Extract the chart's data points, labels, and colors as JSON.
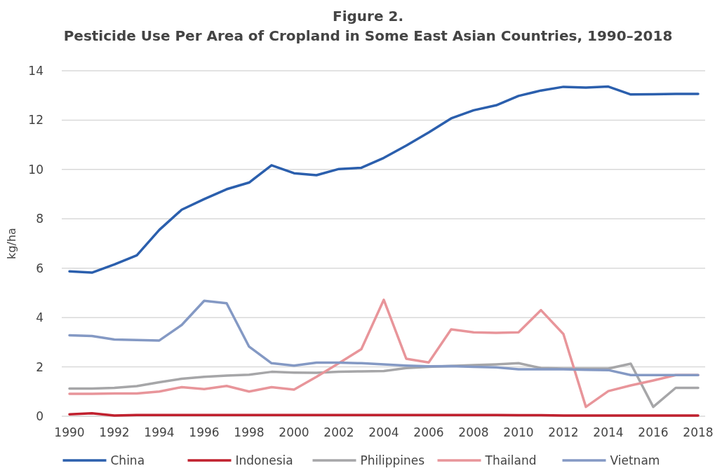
{
  "chart_data": {
    "type": "line",
    "title": "Figure 2.",
    "subtitle": "Pesticide Use Per Area of Cropland in Some East Asian Countries, 1990–2018",
    "ylabel": "kg/ha",
    "x": [
      1990,
      1991,
      1992,
      1993,
      1994,
      1995,
      1996,
      1997,
      1998,
      1999,
      2000,
      2001,
      2002,
      2003,
      2004,
      2005,
      2006,
      2007,
      2008,
      2009,
      2010,
      2011,
      2012,
      2013,
      2014,
      2015,
      2016,
      2017,
      2018
    ],
    "xlim": [
      1990,
      2018
    ],
    "xticks": [
      1990,
      1992,
      1994,
      1996,
      1998,
      2000,
      2002,
      2004,
      2006,
      2008,
      2010,
      2012,
      2014,
      2016,
      2018
    ],
    "ylim": [
      0,
      14
    ],
    "yticks": [
      0,
      2,
      4,
      6,
      8,
      10,
      12,
      14
    ],
    "grid": "y",
    "legend": "bottom",
    "marker": "none",
    "line_style": "solid",
    "series": [
      {
        "name": "China",
        "color": "#2b5fad",
        "values": [
          5.87,
          5.82,
          6.15,
          6.52,
          7.55,
          8.37,
          8.8,
          9.2,
          9.47,
          10.17,
          9.85,
          9.77,
          10.02,
          10.07,
          10.47,
          10.97,
          11.5,
          12.07,
          12.4,
          12.6,
          12.98,
          13.2,
          13.35,
          13.32,
          13.36,
          13.04,
          13.05,
          13.06,
          13.06
        ]
      },
      {
        "name": "Indonesia",
        "color": "#c0202e",
        "values": [
          0.08,
          0.12,
          0.03,
          0.05,
          0.05,
          0.05,
          0.05,
          0.05,
          0.05,
          0.05,
          0.05,
          0.05,
          0.05,
          0.05,
          0.05,
          0.05,
          0.05,
          0.05,
          0.05,
          0.05,
          0.04,
          0.04,
          0.03,
          0.03,
          0.03,
          0.03,
          0.03,
          0.03,
          0.03
        ]
      },
      {
        "name": "Philippines",
        "color": "#a6a6a8",
        "values": [
          1.12,
          1.12,
          1.15,
          1.22,
          1.38,
          1.52,
          1.6,
          1.65,
          1.68,
          1.8,
          1.77,
          1.76,
          1.8,
          1.82,
          1.83,
          1.95,
          2.0,
          2.04,
          2.07,
          2.1,
          2.15,
          1.95,
          1.93,
          1.93,
          1.93,
          2.13,
          0.38,
          1.15,
          1.15
        ]
      },
      {
        "name": "Thailand",
        "color": "#e8959a",
        "values": [
          0.91,
          0.91,
          0.92,
          0.92,
          1.0,
          1.18,
          1.1,
          1.23,
          1.0,
          1.18,
          1.08,
          1.6,
          2.15,
          2.72,
          4.72,
          2.33,
          2.18,
          3.52,
          3.4,
          3.38,
          3.4,
          4.3,
          3.33,
          0.38,
          1.02,
          1.25,
          1.45,
          1.67,
          1.67
        ]
      },
      {
        "name": "Vietnam",
        "color": "#8499c4",
        "values": [
          3.28,
          3.25,
          3.11,
          3.09,
          3.07,
          3.7,
          4.68,
          4.58,
          2.82,
          2.15,
          2.05,
          2.17,
          2.17,
          2.15,
          2.1,
          2.05,
          2.02,
          2.03,
          2.0,
          1.98,
          1.9,
          1.9,
          1.9,
          1.88,
          1.87,
          1.67,
          1.67,
          1.67,
          1.67
        ]
      }
    ]
  }
}
